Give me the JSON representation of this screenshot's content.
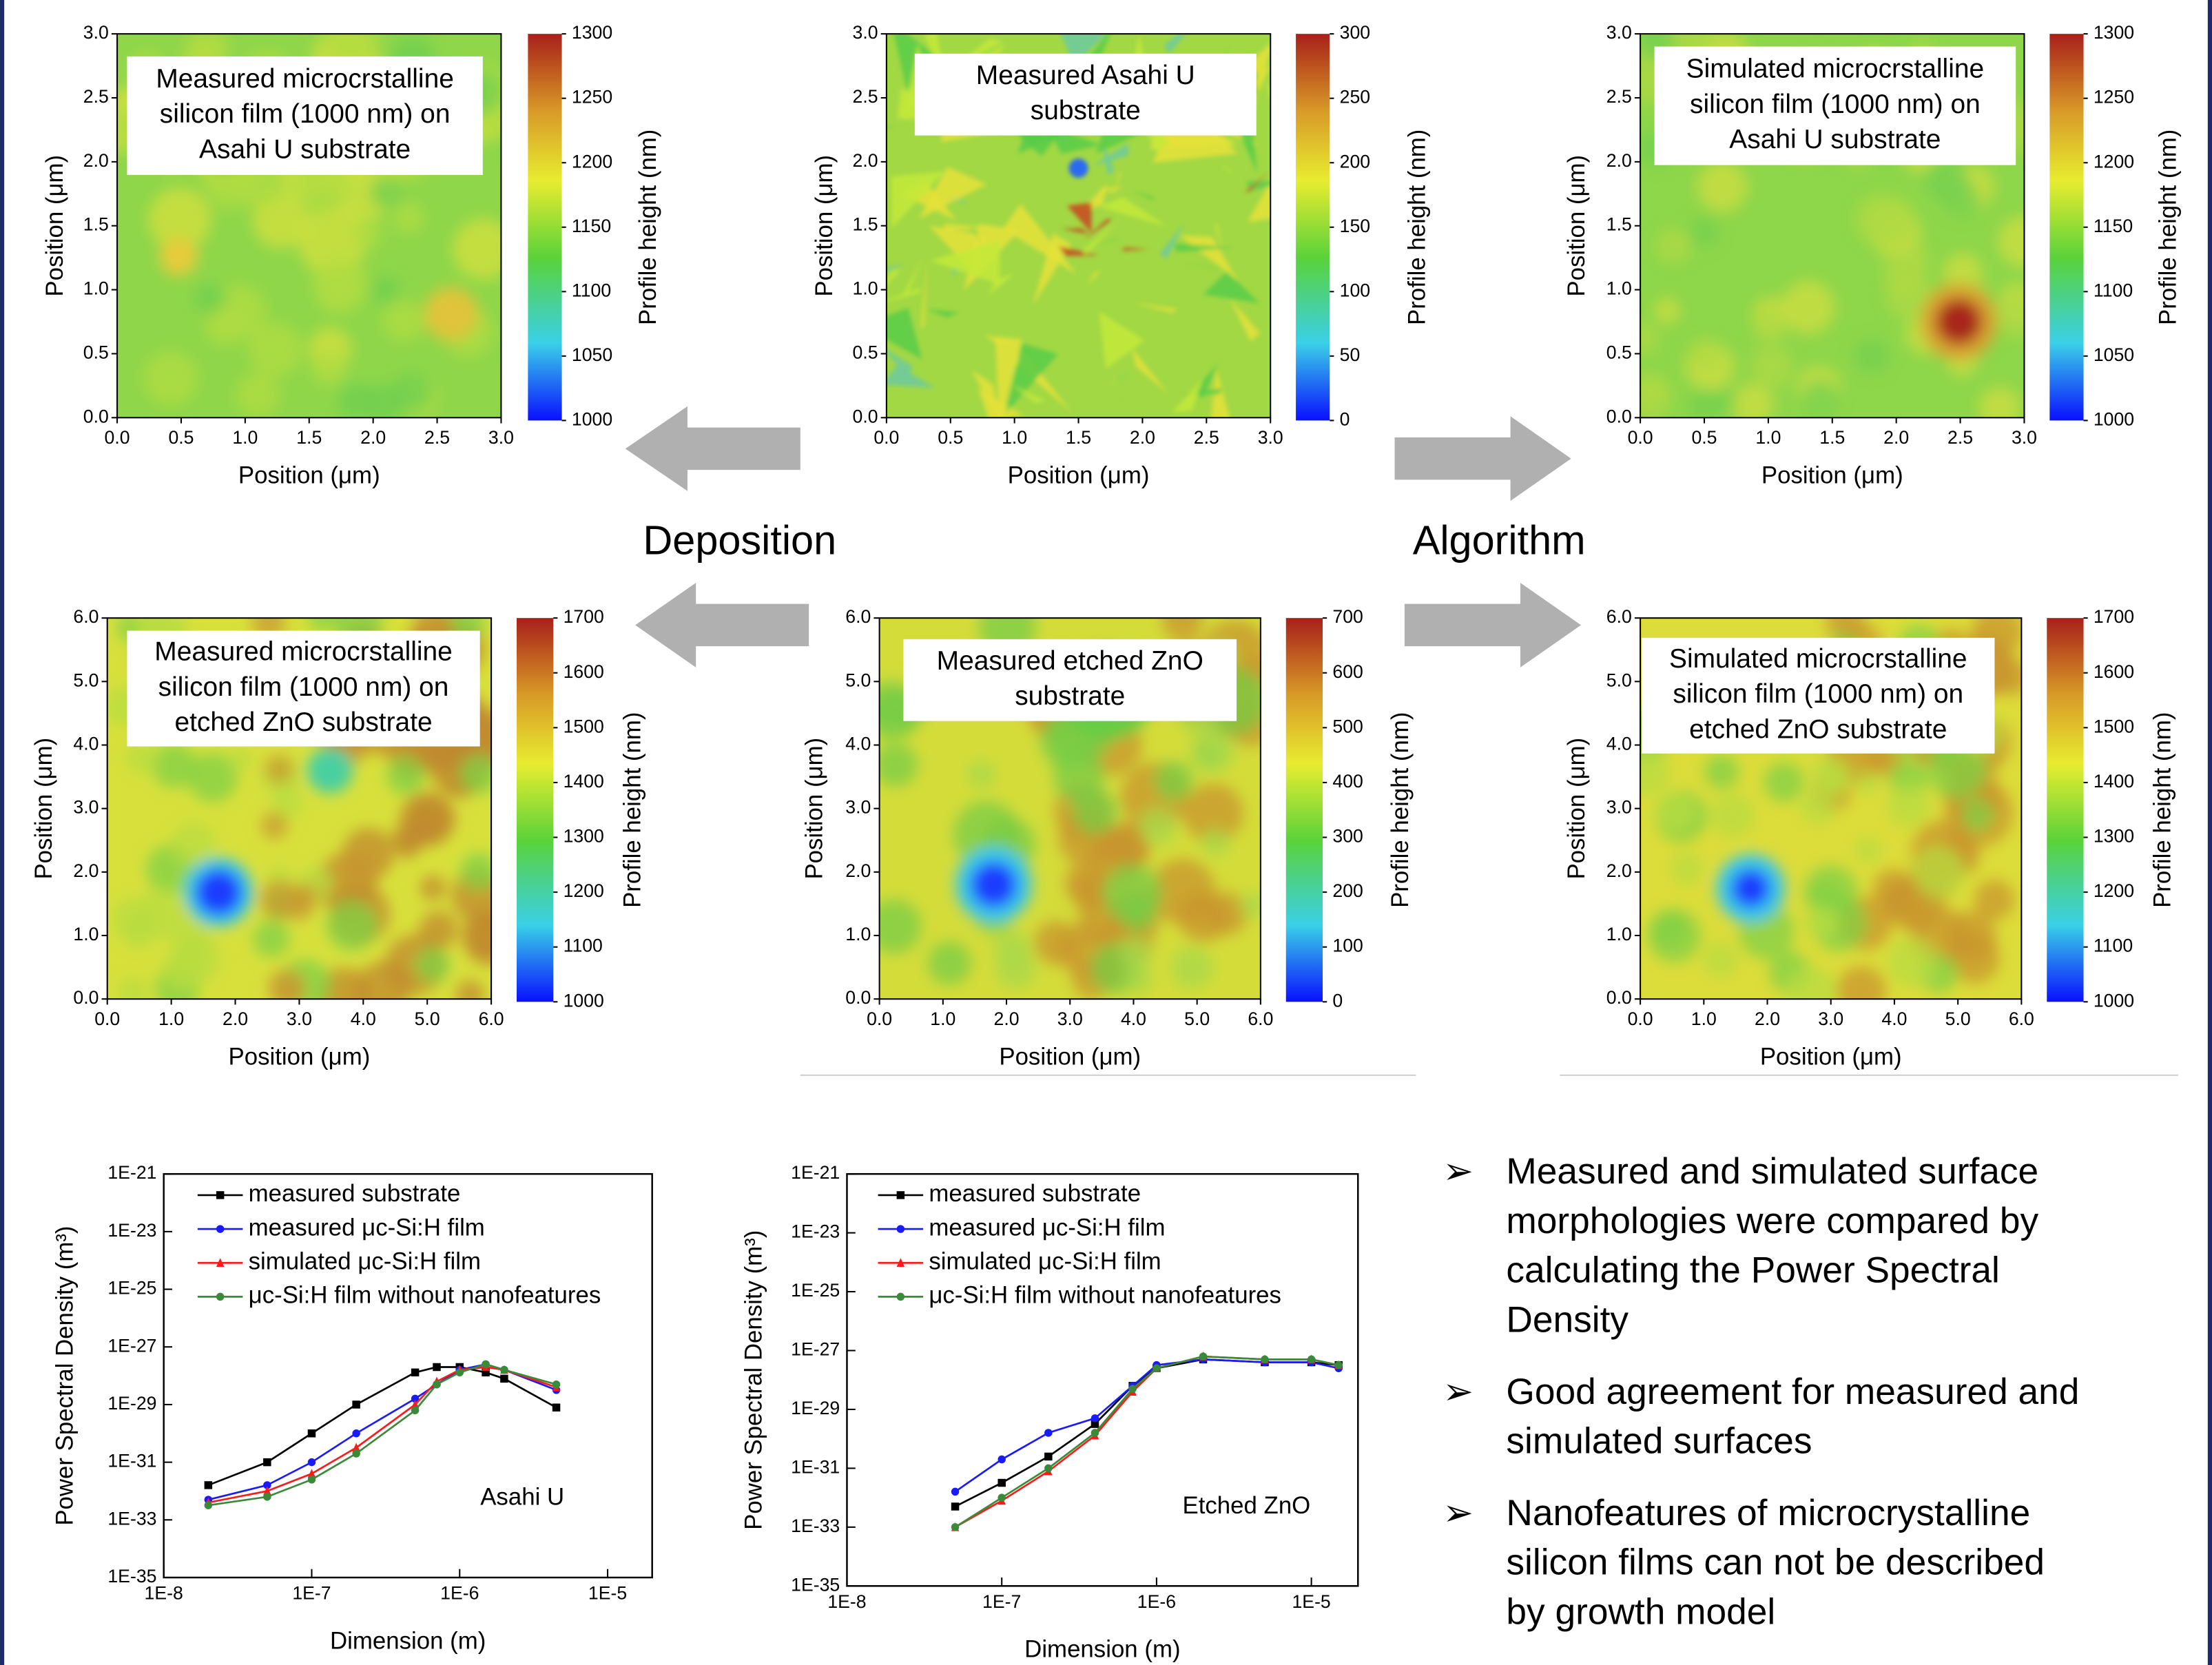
{
  "chart_data": [
    {
      "type": "heatmap",
      "title": [
        "Measured microcrstalline",
        "silicon film (1000 nm) on",
        "Asahi U substrate"
      ],
      "xlabel": "Position (μm)",
      "ylabel": "Position (μm)",
      "xlim": [
        0,
        3
      ],
      "xticks": [
        {
          "value": 0,
          "label": "0.0"
        },
        0.5,
        {
          "value": 1,
          "label": "1.0"
        },
        1.5,
        {
          "value": 2,
          "label": "2.0"
        },
        2.5,
        {
          "value": 3,
          "label": "3.0"
        }
      ],
      "ylim": [
        0,
        3
      ],
      "yticks": [
        {
          "value": 0,
          "label": "0.0"
        },
        0.5,
        {
          "value": 1,
          "label": "1.0"
        },
        1.5,
        {
          "value": 2,
          "label": "2.0"
        },
        2.5,
        {
          "value": 3,
          "label": "3.0"
        }
      ],
      "colorbar_label": "Profile height (nm)",
      "zlim": [
        1000,
        1300
      ],
      "zticks": [
        1000,
        1050,
        1100,
        1150,
        1200,
        1250,
        1300
      ]
    },
    {
      "type": "heatmap",
      "title": [
        "Measured Asahi U",
        "substrate"
      ],
      "xlabel": "Position (μm)",
      "ylabel": "Position (μm)",
      "xlim": [
        0,
        3
      ],
      "xticks": [
        {
          "value": 0,
          "label": "0.0"
        },
        0.5,
        {
          "value": 1,
          "label": "1.0"
        },
        1.5,
        {
          "value": 2,
          "label": "2.0"
        },
        2.5,
        {
          "value": 3,
          "label": "3.0"
        }
      ],
      "ylim": [
        0,
        3
      ],
      "yticks": [
        {
          "value": 0,
          "label": "0.0"
        },
        0.5,
        {
          "value": 1,
          "label": "1.0"
        },
        1.5,
        {
          "value": 2,
          "label": "2.0"
        },
        2.5,
        {
          "value": 3,
          "label": "3.0"
        }
      ],
      "colorbar_label": "Profile height (nm)",
      "zlim": [
        0,
        300
      ],
      "zticks": [
        0,
        50,
        100,
        150,
        200,
        250,
        300
      ]
    },
    {
      "type": "heatmap",
      "title": [
        "Simulated microcrstalline",
        "silicon film (1000 nm) on",
        "Asahi U substrate"
      ],
      "xlabel": "Position (μm)",
      "ylabel": "Position (μm)",
      "xlim": [
        0,
        3
      ],
      "xticks": [
        {
          "value": 0,
          "label": "0.0"
        },
        0.5,
        {
          "value": 1,
          "label": "1.0"
        },
        1.5,
        {
          "value": 2,
          "label": "2.0"
        },
        2.5,
        {
          "value": 3,
          "label": "3.0"
        }
      ],
      "ylim": [
        0,
        3
      ],
      "yticks": [
        {
          "value": 0,
          "label": "0.0"
        },
        0.5,
        {
          "value": 1,
          "label": "1.0"
        },
        1.5,
        {
          "value": 2,
          "label": "2.0"
        },
        2.5,
        {
          "value": 3,
          "label": "3.0"
        }
      ],
      "colorbar_label": "Profile height (nm)",
      "zlim": [
        1000,
        1300
      ],
      "zticks": [
        1000,
        1050,
        1100,
        1150,
        1200,
        1250,
        1300
      ]
    },
    {
      "type": "heatmap",
      "title": [
        "Measured microcrstalline",
        "silicon film (1000 nm) on",
        "etched ZnO substrate"
      ],
      "xlabel": "Position (μm)",
      "ylabel": "Position (μm)",
      "xlim": [
        0,
        6
      ],
      "xticks": [
        {
          "value": 0,
          "label": "0.0"
        },
        {
          "value": 1,
          "label": "1.0"
        },
        {
          "value": 2,
          "label": "2.0"
        },
        {
          "value": 3,
          "label": "3.0"
        },
        {
          "value": 4,
          "label": "4.0"
        },
        {
          "value": 5,
          "label": "5.0"
        },
        {
          "value": 6,
          "label": "6.0"
        }
      ],
      "ylim": [
        0,
        6
      ],
      "yticks": [
        {
          "value": 0,
          "label": "0.0"
        },
        {
          "value": 1,
          "label": "1.0"
        },
        {
          "value": 2,
          "label": "2.0"
        },
        {
          "value": 3,
          "label": "3.0"
        },
        {
          "value": 4,
          "label": "4.0"
        },
        {
          "value": 5,
          "label": "5.0"
        },
        {
          "value": 6,
          "label": "6.0"
        }
      ],
      "colorbar_label": "Profile height (nm)",
      "zlim": [
        1000,
        1700
      ],
      "zticks": [
        1000,
        1100,
        1200,
        1300,
        1400,
        1500,
        1600,
        1700
      ]
    },
    {
      "type": "heatmap",
      "title": [
        "Measured etched ZnO",
        "substrate"
      ],
      "xlabel": "Position (μm)",
      "ylabel": "Position (μm)",
      "xlim": [
        0,
        6
      ],
      "xticks": [
        {
          "value": 0,
          "label": "0.0"
        },
        {
          "value": 1,
          "label": "1.0"
        },
        {
          "value": 2,
          "label": "2.0"
        },
        {
          "value": 3,
          "label": "3.0"
        },
        {
          "value": 4,
          "label": "4.0"
        },
        {
          "value": 5,
          "label": "5.0"
        },
        {
          "value": 6,
          "label": "6.0"
        }
      ],
      "ylim": [
        0,
        6
      ],
      "yticks": [
        {
          "value": 0,
          "label": "0.0"
        },
        {
          "value": 1,
          "label": "1.0"
        },
        {
          "value": 2,
          "label": "2.0"
        },
        {
          "value": 3,
          "label": "3.0"
        },
        {
          "value": 4,
          "label": "4.0"
        },
        {
          "value": 5,
          "label": "5.0"
        },
        {
          "value": 6,
          "label": "6.0"
        }
      ],
      "colorbar_label": "Profile height (nm)",
      "zlim": [
        0,
        700
      ],
      "zticks": [
        0,
        100,
        200,
        300,
        400,
        500,
        600,
        700
      ]
    },
    {
      "type": "heatmap",
      "title": [
        "Simulated microcrstalline",
        "silicon film (1000 nm) on",
        "etched ZnO substrate"
      ],
      "xlabel": "Position (μm)",
      "ylabel": "Position (μm)",
      "xlim": [
        0,
        6
      ],
      "xticks": [
        {
          "value": 0,
          "label": "0.0"
        },
        {
          "value": 1,
          "label": "1.0"
        },
        {
          "value": 2,
          "label": "2.0"
        },
        {
          "value": 3,
          "label": "3.0"
        },
        {
          "value": 4,
          "label": "4.0"
        },
        {
          "value": 5,
          "label": "5.0"
        },
        {
          "value": 6,
          "label": "6.0"
        }
      ],
      "ylim": [
        0,
        6
      ],
      "yticks": [
        {
          "value": 0,
          "label": "0.0"
        },
        {
          "value": 1,
          "label": "1.0"
        },
        {
          "value": 2,
          "label": "2.0"
        },
        {
          "value": 3,
          "label": "3.0"
        },
        {
          "value": 4,
          "label": "4.0"
        },
        {
          "value": 5,
          "label": "5.0"
        },
        {
          "value": 6,
          "label": "6.0"
        }
      ],
      "colorbar_label": "Profile height (nm)",
      "zlim": [
        1000,
        1700
      ],
      "zticks": [
        1000,
        1100,
        1200,
        1300,
        1400,
        1500,
        1600,
        1700
      ]
    },
    {
      "type": "line",
      "xlabel": "Dimension (m)",
      "ylabel": "Power Spectral Density (m³)",
      "annotation": "Asahi U",
      "xlog": true,
      "ylog": true,
      "xlim": [
        1e-08,
        2e-05
      ],
      "ylim": [
        1e-35,
        1e-21
      ],
      "xticks": [
        {
          "value": 1e-08,
          "label": "1E-8"
        },
        {
          "value": 1e-07,
          "label": "1E-7"
        },
        {
          "value": 1e-06,
          "label": "1E-6"
        },
        {
          "value": 1e-05,
          "label": "1E-5"
        }
      ],
      "yticks": [
        {
          "value": 1e-21,
          "label": "1E-21"
        },
        {
          "value": 1e-23,
          "label": "1E-23"
        },
        {
          "value": 1e-25,
          "label": "1E-25"
        },
        {
          "value": 1e-27,
          "label": "1E-27"
        },
        {
          "value": 1e-29,
          "label": "1E-29"
        },
        {
          "value": 1e-31,
          "label": "1E-31"
        },
        {
          "value": 1e-33,
          "label": "1E-33"
        },
        {
          "value": 1e-35,
          "label": "1E-35"
        }
      ],
      "x": [
        2e-08,
        5e-08,
        1e-07,
        2e-07,
        5e-07,
        7e-07,
        1e-06,
        1.5e-06,
        2e-06,
        4.5e-06
      ],
      "series": [
        {
          "name": "measured substrate",
          "color": "#000000",
          "marker": "square",
          "values": [
            1.6e-32,
            1e-31,
            1e-30,
            1e-29,
            1.3e-28,
            2e-28,
            2e-28,
            1.3e-28,
            7.9e-29,
            7.9e-30
          ]
        },
        {
          "name": "measured μc-Si:H film",
          "color": "#1a1aff",
          "marker": "circle",
          "values": [
            5e-33,
            1.6e-32,
            1e-31,
            1e-30,
            1.6e-29,
            5e-29,
            1.6e-28,
            2.5e-28,
            1.6e-28,
            3.2e-29
          ]
        },
        {
          "name": "simulated μc-Si:H film",
          "color": "#ff1a1a",
          "marker": "triangle",
          "values": [
            4e-33,
            1e-32,
            4e-32,
            3.2e-31,
            1e-29,
            6.3e-29,
            1.6e-28,
            2e-28,
            1.6e-28,
            4e-29
          ]
        },
        {
          "name": "μc-Si:H film without nanofeatures",
          "color": "#3a8a3a",
          "marker": "circle",
          "values": [
            3.2e-33,
            6.3e-33,
            2.5e-32,
            2e-31,
            6.3e-30,
            5e-29,
            1.3e-28,
            2.5e-28,
            1.6e-28,
            5e-29
          ]
        }
      ]
    },
    {
      "type": "line",
      "xlabel": "Dimension (m)",
      "ylabel": "Power Spectral Density (m³)",
      "annotation": "Etched ZnO",
      "xlog": true,
      "ylog": true,
      "xlim": [
        1e-08,
        2e-05
      ],
      "ylim": [
        1e-35,
        1e-21
      ],
      "xticks": [
        {
          "value": 1e-08,
          "label": "1E-8"
        },
        {
          "value": 1e-07,
          "label": "1E-7"
        },
        {
          "value": 1e-06,
          "label": "1E-6"
        },
        {
          "value": 1e-05,
          "label": "1E-5"
        }
      ],
      "yticks": [
        {
          "value": 1e-21,
          "label": "1E-21"
        },
        {
          "value": 1e-23,
          "label": "1E-23"
        },
        {
          "value": 1e-25,
          "label": "1E-25"
        },
        {
          "value": 1e-27,
          "label": "1E-27"
        },
        {
          "value": 1e-29,
          "label": "1E-29"
        },
        {
          "value": 1e-31,
          "label": "1E-31"
        },
        {
          "value": 1e-33,
          "label": "1E-33"
        },
        {
          "value": 1e-35,
          "label": "1E-35"
        }
      ],
      "x": [
        5e-08,
        1e-07,
        2e-07,
        4e-07,
        7e-07,
        1e-06,
        2e-06,
        5e-06,
        1e-05,
        1.5e-05
      ],
      "series": [
        {
          "name": "measured substrate",
          "color": "#000000",
          "marker": "square",
          "values": [
            5e-33,
            3.2e-32,
            2.5e-31,
            3.2e-30,
            6.3e-29,
            2.5e-28,
            5e-28,
            4e-28,
            4e-28,
            3.2e-28
          ]
        },
        {
          "name": "measured μc-Si:H film",
          "color": "#1a1aff",
          "marker": "circle",
          "values": [
            1.6e-32,
            2e-31,
            1.6e-30,
            5e-30,
            6.3e-29,
            3.2e-28,
            5e-28,
            4e-28,
            4e-28,
            2.5e-28
          ]
        },
        {
          "name": "simulated μc-Si:H film",
          "color": "#ff1a1a",
          "marker": "triangle",
          "values": [
            1e-33,
            7.9e-33,
            7.9e-32,
            1.3e-30,
            4e-29,
            2.5e-28,
            6.3e-28,
            5e-28,
            5e-28,
            3.2e-28
          ]
        },
        {
          "name": "μc-Si:H film without nanofeatures",
          "color": "#3a8a3a",
          "marker": "circle",
          "values": [
            1e-33,
            1e-32,
            1e-31,
            1.6e-30,
            5e-29,
            2.5e-28,
            6.3e-28,
            5e-28,
            5e-28,
            3.2e-28
          ]
        }
      ]
    }
  ],
  "labels": {
    "deposition": "Deposition",
    "algorithm": "Algorithm"
  },
  "bullets": [
    [
      "Measured and simulated surface",
      "morphologies were compared by",
      "calculating the Power Spectral",
      "Density"
    ],
    [
      "Good agreement for measured and",
      "simulated surfaces"
    ],
    [
      "Nanofeatures of microcrystalline",
      "silicon films can not be described",
      "by growth model"
    ]
  ]
}
